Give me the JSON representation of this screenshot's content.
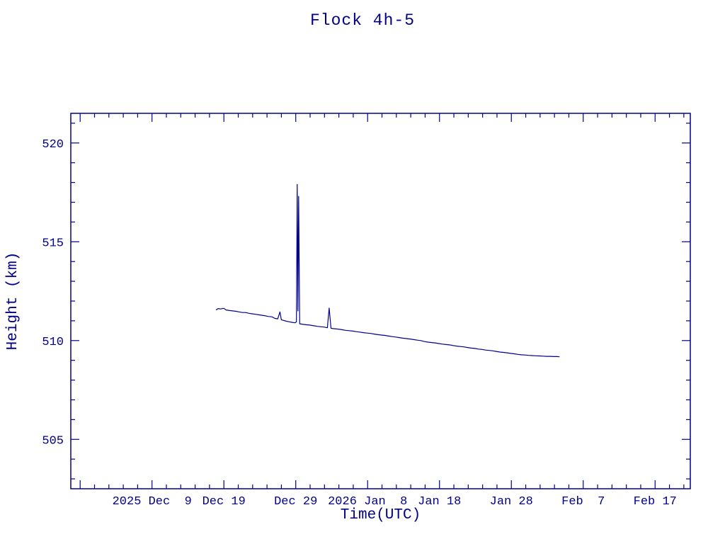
{
  "title": "Flock 4h-5",
  "colors": {
    "accent": "#00008B",
    "background": "#ffffff"
  },
  "chart_data": {
    "type": "line",
    "title": "Flock 4h-5",
    "xlabel": "Time(UTC)",
    "ylabel": "Height (km)",
    "x_unit": "days since 2025 Dec 9 (UTC)",
    "xlim": [
      -11.3,
      74.9
    ],
    "ylim": [
      502.5,
      521.5
    ],
    "grid": false,
    "legend": "none",
    "x_major_step": 10,
    "x_minor_step": 2,
    "y_major_step": 5,
    "y_minor_step": 1,
    "x_ticks": [
      {
        "x": 0,
        "label": "2025 Dec  9"
      },
      {
        "x": 10,
        "label": "Dec 19"
      },
      {
        "x": 20,
        "label": "Dec 29"
      },
      {
        "x": 30,
        "label": "2026 Jan  8"
      },
      {
        "x": 40,
        "label": "Jan 18"
      },
      {
        "x": 50,
        "label": "Jan 28"
      },
      {
        "x": 60,
        "label": "Feb  7"
      },
      {
        "x": 70,
        "label": "Feb 17"
      }
    ],
    "y_ticks": [
      {
        "y": 505,
        "label": "505"
      },
      {
        "y": 510,
        "label": "510"
      },
      {
        "y": 515,
        "label": "515"
      },
      {
        "y": 520,
        "label": "520"
      }
    ],
    "series": [
      {
        "name": "height",
        "color": "#00008B",
        "x": [
          8.9,
          9.2,
          9.5,
          10.0,
          10.3,
          10.8,
          11.2,
          11.7,
          12.1,
          12.6,
          13.0,
          13.5,
          14.0,
          14.4,
          14.9,
          15.3,
          15.8,
          16.2,
          16.7,
          17.1,
          17.5,
          17.8,
          18.0,
          18.3,
          18.7,
          19.1,
          19.5,
          19.9,
          20.1,
          20.2,
          20.3,
          20.4,
          20.55,
          21.0,
          21.5,
          22.0,
          22.5,
          23.0,
          23.5,
          24.0,
          24.4,
          24.65,
          24.9,
          25.4,
          25.9,
          26.4,
          26.9,
          27.4,
          27.9,
          28.4,
          28.9,
          29.4,
          29.9,
          30.4,
          30.9,
          31.4,
          31.9,
          32.4,
          32.9,
          33.4,
          33.9,
          34.4,
          34.9,
          35.4,
          35.9,
          36.4,
          36.9,
          37.4,
          37.9,
          38.4,
          38.9,
          39.4,
          39.9,
          40.4,
          40.9,
          41.4,
          41.9,
          42.4,
          42.9,
          43.4,
          43.9,
          44.4,
          44.9,
          45.4,
          45.9,
          46.4,
          46.9,
          47.4,
          47.9,
          48.4,
          48.9,
          49.4,
          49.9,
          50.4,
          50.9,
          51.4,
          51.9,
          52.4,
          52.9,
          53.4,
          53.9,
          54.4,
          54.9,
          55.4,
          55.9,
          56.4,
          56.7
        ],
        "y": [
          511.55,
          511.62,
          511.6,
          511.63,
          511.55,
          511.52,
          511.5,
          511.48,
          511.45,
          511.42,
          511.42,
          511.38,
          511.35,
          511.33,
          511.3,
          511.28,
          511.25,
          511.22,
          511.2,
          511.12,
          511.1,
          511.45,
          511.05,
          511.02,
          510.98,
          510.95,
          510.92,
          510.9,
          510.95,
          517.9,
          511.5,
          517.3,
          510.85,
          510.82,
          510.8,
          510.78,
          510.75,
          510.72,
          510.7,
          510.68,
          510.65,
          511.65,
          510.62,
          510.6,
          510.58,
          510.55,
          510.52,
          510.5,
          510.48,
          510.45,
          510.43,
          510.4,
          510.38,
          510.36,
          510.33,
          510.3,
          510.28,
          510.26,
          510.23,
          510.2,
          510.18,
          510.15,
          510.12,
          510.1,
          510.08,
          510.05,
          510.02,
          510.0,
          509.95,
          509.92,
          509.9,
          509.88,
          509.85,
          509.82,
          509.8,
          509.78,
          509.75,
          509.72,
          509.7,
          509.68,
          509.65,
          509.62,
          509.6,
          509.57,
          509.55,
          509.52,
          509.5,
          509.48,
          509.45,
          509.42,
          509.4,
          509.38,
          509.35,
          509.33,
          509.3,
          509.28,
          509.27,
          509.25,
          509.24,
          509.23,
          509.22,
          509.21,
          509.2,
          509.2,
          509.19,
          509.19,
          509.18
        ]
      }
    ]
  }
}
